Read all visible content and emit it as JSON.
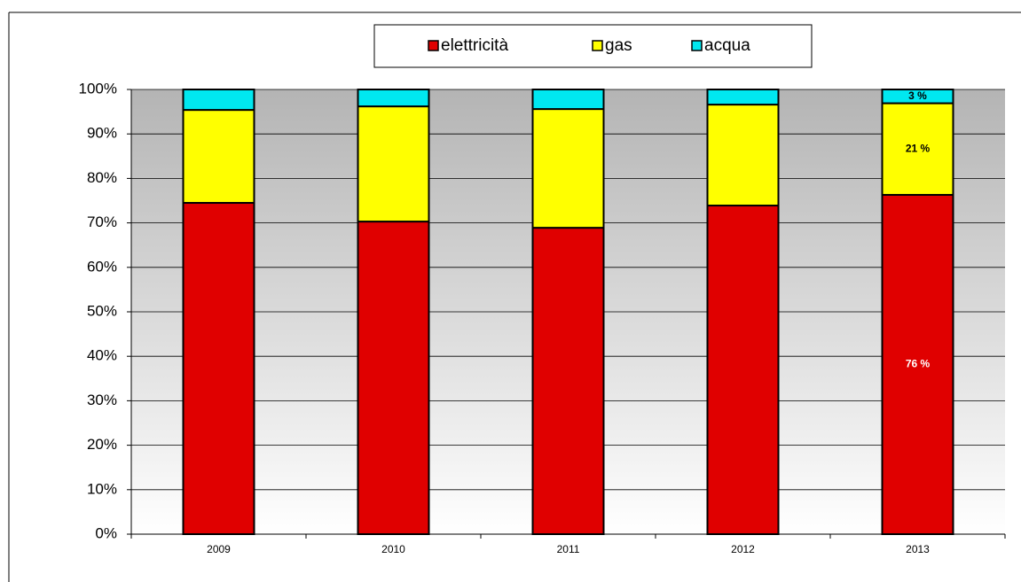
{
  "chart_data": {
    "type": "stacked_bar",
    "categories": [
      "2009",
      "2010",
      "2011",
      "2012",
      "2013"
    ],
    "series": [
      {
        "name": "elettricità",
        "color": "#e00000",
        "values": [
          74.5,
          70.3,
          68.9,
          73.9,
          76.3
        ],
        "value_labels": [
          null,
          null,
          null,
          null,
          "76 %"
        ]
      },
      {
        "name": "gas",
        "color": "#ffff00",
        "values": [
          20.9,
          25.9,
          26.7,
          22.7,
          20.6
        ],
        "value_labels": [
          null,
          null,
          null,
          null,
          "21 %"
        ]
      },
      {
        "name": "acqua",
        "color": "#00e8f0",
        "values": [
          4.6,
          3.8,
          4.4,
          3.4,
          3.1
        ],
        "value_labels": [
          null,
          null,
          null,
          null,
          "3 %"
        ]
      }
    ],
    "ylim": [
      0,
      100
    ],
    "yticks": [
      {
        "value": 0,
        "label": "0%"
      },
      {
        "value": 10,
        "label": "10%"
      },
      {
        "value": 20,
        "label": "20%"
      },
      {
        "value": 30,
        "label": "30%"
      },
      {
        "value": 40,
        "label": "40%"
      },
      {
        "value": 50,
        "label": "50%"
      },
      {
        "value": 60,
        "label": "60%"
      },
      {
        "value": 70,
        "label": "70%"
      },
      {
        "value": 80,
        "label": "80%"
      },
      {
        "value": 90,
        "label": "90%"
      },
      {
        "value": 100,
        "label": "100%"
      }
    ],
    "grid": true,
    "legend": "top"
  }
}
